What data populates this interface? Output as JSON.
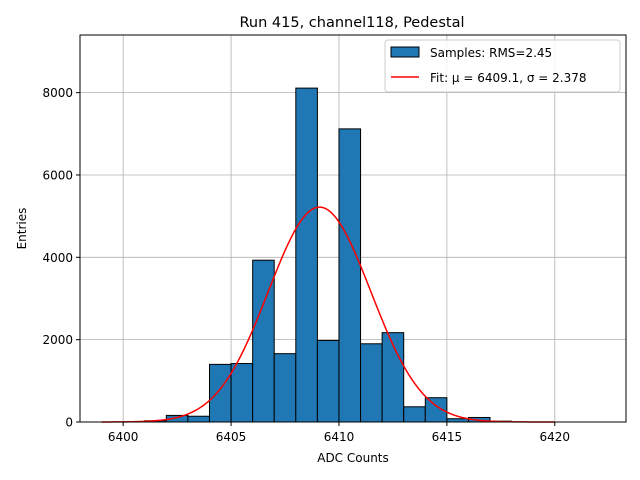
{
  "chart_data": {
    "type": "bar",
    "title": "Run 415, channel118, Pedestal",
    "xlabel": "ADC Counts",
    "ylabel": "Entries",
    "xlim": [
      6398,
      6423.3
    ],
    "ylim": [
      0,
      9400
    ],
    "xticks": [
      6400,
      6405,
      6410,
      6415,
      6420
    ],
    "yticks": [
      0,
      2000,
      4000,
      6000,
      8000
    ],
    "grid": true,
    "legend_position": "top-right",
    "bin_width": 1,
    "bins": {
      "left_edges": [
        6401,
        6402,
        6403,
        6404,
        6405,
        6406,
        6407,
        6408,
        6409,
        6410,
        6411,
        6412,
        6413,
        6414,
        6415,
        6416,
        6417
      ],
      "values": [
        30,
        160,
        140,
        1400,
        1420,
        3930,
        1660,
        8110,
        1980,
        7120,
        1900,
        2170,
        370,
        590,
        80,
        110,
        20
      ]
    },
    "fit": {
      "mu": 6409.1,
      "sigma": 2.378,
      "amplitude": 5220,
      "x_range": [
        6399,
        6420
      ]
    },
    "series": [
      {
        "name": "Samples: RMS=2.45",
        "kind": "histogram",
        "color": "#1f77b4"
      },
      {
        "name": "Fit: μ = 6409.1, σ = 2.378",
        "kind": "line",
        "color": "#ff0000"
      }
    ]
  }
}
